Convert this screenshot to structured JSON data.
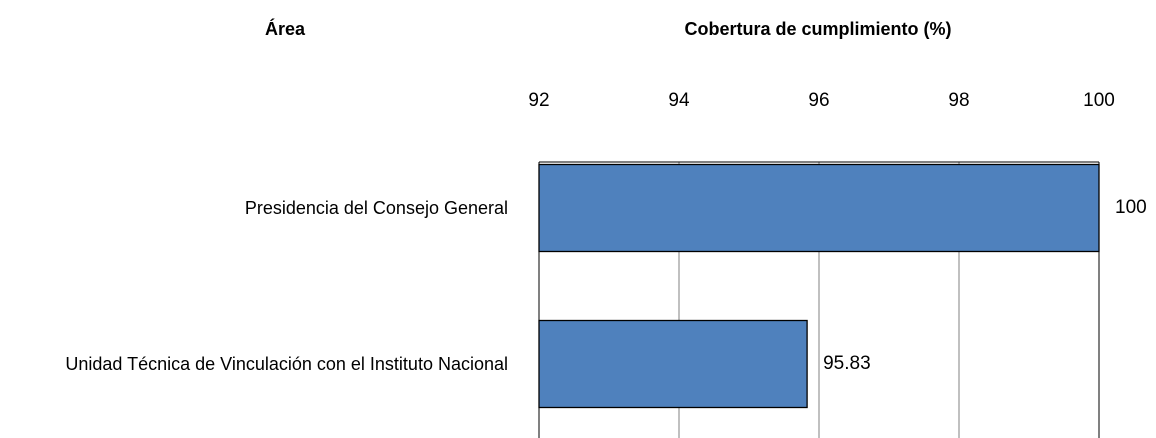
{
  "chart_data": {
    "type": "bar",
    "orientation": "horizontal",
    "y_label": "Área",
    "x_label": "Cobertura de cumplimiento (%)",
    "categories": [
      "Presidencia del Consejo General",
      "Unidad Técnica de Vinculación con el Instituto Nacional"
    ],
    "values": [
      100,
      95.83
    ],
    "color": "#4f81bd",
    "xlim": [
      92,
      100
    ],
    "xticks": [
      92,
      94,
      96,
      98,
      100
    ],
    "grid": true
  }
}
